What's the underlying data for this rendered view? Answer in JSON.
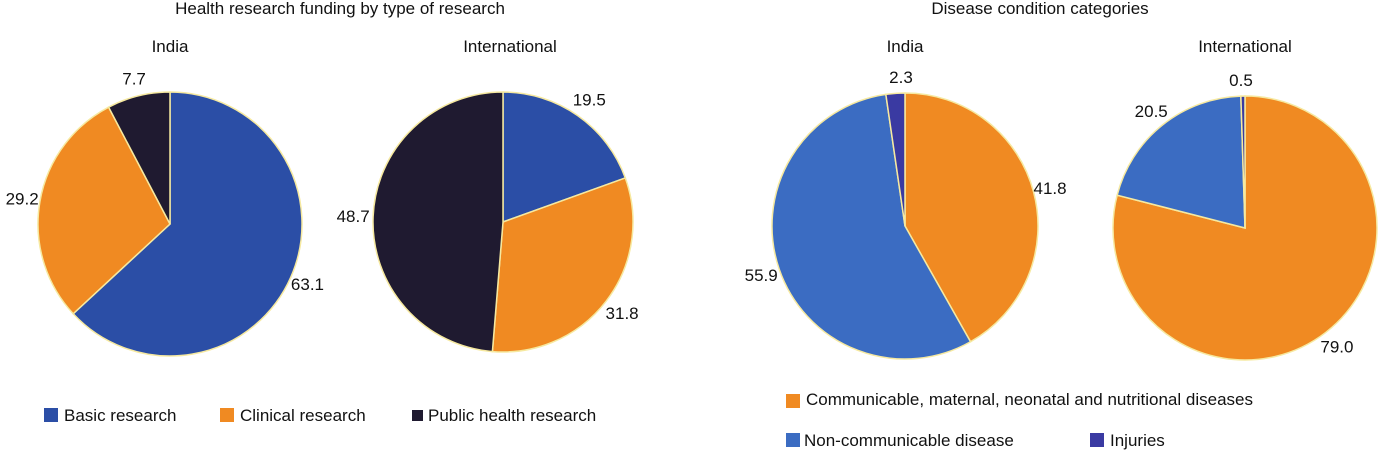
{
  "colors": {
    "basic": "#2b4ea6",
    "clinical": "#f08a22",
    "public": "#1f1a30",
    "communicable": "#f08a22",
    "noncommunicable": "#3b6cc2",
    "injuries": "#3a3aa2"
  },
  "chart_data": [
    {
      "type": "pie",
      "title": "Health research funding by type of research",
      "legend": [
        "Basic research",
        "Clinical research",
        "Public health research"
      ],
      "pies": [
        {
          "label": "India",
          "slices": [
            {
              "name": "Basic research",
              "value": 63.1,
              "label": "63.1"
            },
            {
              "name": "Clinical research",
              "value": 29.2,
              "label": "29.2"
            },
            {
              "name": "Public health research",
              "value": 7.7,
              "label": "7.7"
            }
          ]
        },
        {
          "label": "International",
          "slices": [
            {
              "name": "Basic research",
              "value": 19.5,
              "label": "19.5"
            },
            {
              "name": "Clinical research",
              "value": 31.8,
              "label": "31.8"
            },
            {
              "name": "Public health research",
              "value": 48.7,
              "label": "48.7"
            }
          ]
        }
      ]
    },
    {
      "type": "pie",
      "title": "Disease condition categories",
      "legend": [
        "Communicable, maternal, neonatal and nutritional diseases",
        "Non-communicable disease",
        "Injuries"
      ],
      "pies": [
        {
          "label": "India",
          "slices": [
            {
              "name": "Communicable, maternal, neonatal and nutritional diseases",
              "value": 41.8,
              "label": "41.8"
            },
            {
              "name": "Non-communicable disease",
              "value": 55.9,
              "label": "55.9"
            },
            {
              "name": "Injuries",
              "value": 2.3,
              "label": "2.3"
            }
          ]
        },
        {
          "label": "International",
          "slices": [
            {
              "name": "Communicable, maternal, neonatal and nutritional diseases",
              "value": 79.0,
              "label": "79.0"
            },
            {
              "name": "Non-communicable disease",
              "value": 20.5,
              "label": "20.5"
            },
            {
              "name": "Injuries",
              "value": 0.5,
              "label": "0.5"
            }
          ]
        }
      ]
    }
  ]
}
